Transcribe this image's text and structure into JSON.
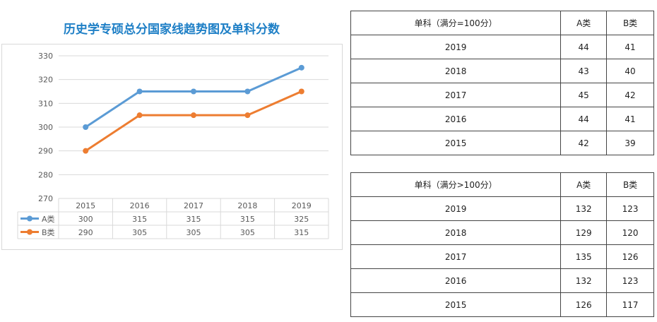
{
  "chart_data": {
    "type": "line",
    "title": "历史学专硕总分国家线趋势图及单科分数",
    "categories": [
      "2015",
      "2016",
      "2017",
      "2018",
      "2019"
    ],
    "series": [
      {
        "name": "A类",
        "values": [
          300,
          315,
          315,
          315,
          325
        ],
        "color": "#5b9bd5"
      },
      {
        "name": "B类",
        "values": [
          290,
          305,
          305,
          305,
          315
        ],
        "color": "#ed7d31"
      }
    ],
    "ylim": [
      270,
      330
    ],
    "yticks": [
      270,
      280,
      290,
      300,
      310,
      320,
      330
    ],
    "grid": true,
    "legend": "data-table-below"
  },
  "tables": [
    {
      "header": [
        "单科（满分=100分）",
        "A类",
        "B类"
      ],
      "rows": [
        [
          "2019",
          "44",
          "41"
        ],
        [
          "2018",
          "43",
          "40"
        ],
        [
          "2017",
          "45",
          "42"
        ],
        [
          "2016",
          "44",
          "41"
        ],
        [
          "2015",
          "42",
          "39"
        ]
      ]
    },
    {
      "header": [
        "单科（满分>100分）",
        "A类",
        "B类"
      ],
      "rows": [
        [
          "2019",
          "132",
          "123"
        ],
        [
          "2018",
          "129",
          "120"
        ],
        [
          "2017",
          "135",
          "126"
        ],
        [
          "2016",
          "132",
          "123"
        ],
        [
          "2015",
          "126",
          "117"
        ]
      ]
    }
  ]
}
